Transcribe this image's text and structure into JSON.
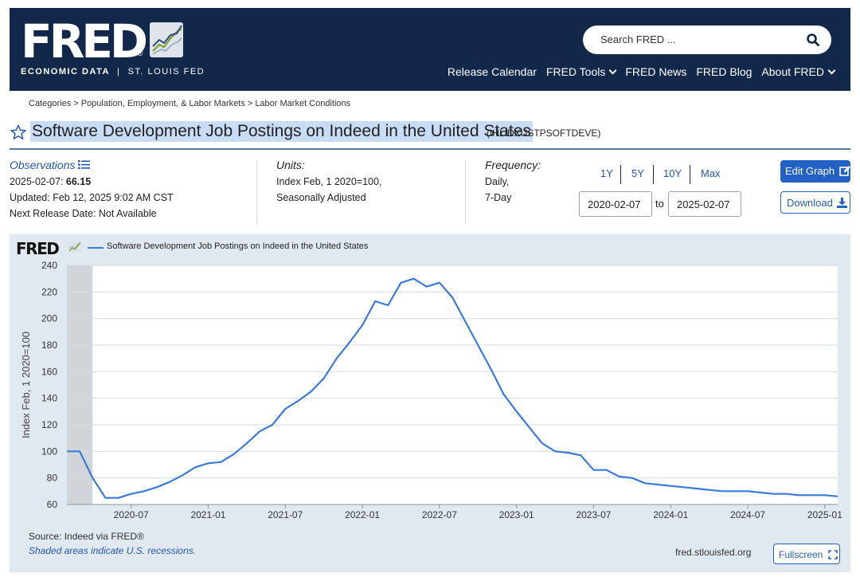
{
  "header": {
    "logo_text": "FRED",
    "logo_reg": "®",
    "logo_sub_bold": "ECONOMIC DATA",
    "logo_sub_sep": "|",
    "logo_sub_rest": "ST. LOUIS FED",
    "search_placeholder": "Search FRED ...",
    "nav": [
      {
        "label": "Release Calendar"
      },
      {
        "label": "FRED Tools"
      },
      {
        "label": "FRED News"
      },
      {
        "label": "FRED Blog"
      },
      {
        "label": "About FRED"
      }
    ]
  },
  "breadcrumb": "Categories > Population, Employment, & Labor Markets > Labor Market Conditions",
  "series": {
    "title": "Software Development Job Postings on Indeed in the United States",
    "id": "(IHLIDXUSTPSOFTDEVE)"
  },
  "observations": {
    "label": "Observations",
    "date": "2025-02-07:",
    "value": "66.15",
    "updated": "Updated: Feb 12, 2025 9:02 AM CST",
    "next_release": "Next Release Date: Not Available"
  },
  "units": {
    "label": "Units:",
    "line1": "Index Feb, 1 2020=100,",
    "line2": "Seasonally Adjusted"
  },
  "frequency": {
    "label": "Frequency:",
    "line1": "Daily,",
    "line2": "7-Day"
  },
  "ranges": [
    "1Y",
    "5Y",
    "10Y",
    "Max"
  ],
  "date_range": {
    "from": "2020-02-07",
    "to_label": "to",
    "to": "2025-02-07"
  },
  "buttons": {
    "edit": "Edit Graph",
    "download": "Download",
    "fullscreen": "Fullscreen"
  },
  "panel": {
    "logo_text": "FRED",
    "source": "Source: Indeed via FRED®",
    "shade_note": "Shaded areas indicate U.S. recessions.",
    "site": "fred.stlouisfed.org"
  },
  "colors": {
    "header_bg": "#12284a",
    "line": "#3a7bd9",
    "panel_bg": "#e1e9f0",
    "accent": "#2461c4"
  },
  "chart_data": {
    "type": "line",
    "legend": "Software Development Job Postings on Indeed in the United States",
    "ylabel": "Index Feb, 1 2020=100",
    "ylim": [
      60,
      240
    ],
    "yticks": [
      60,
      80,
      100,
      120,
      140,
      160,
      180,
      200,
      220,
      240
    ],
    "xticks": [
      "2020-07",
      "2021-01",
      "2021-07",
      "2022-01",
      "2022-07",
      "2023-01",
      "2023-07",
      "2024-01",
      "2024-07",
      "2025-01"
    ],
    "recession": [
      "2020-02",
      "2020-04"
    ],
    "series": [
      {
        "points": [
          [
            "2020-02",
            100
          ],
          [
            "2020-03",
            100
          ],
          [
            "2020-04",
            80
          ],
          [
            "2020-05",
            65
          ],
          [
            "2020-06",
            65
          ],
          [
            "2020-07",
            68
          ],
          [
            "2020-08",
            70
          ],
          [
            "2020-09",
            73
          ],
          [
            "2020-10",
            77
          ],
          [
            "2020-11",
            82
          ],
          [
            "2020-12",
            88
          ],
          [
            "2021-01",
            91
          ],
          [
            "2021-02",
            92
          ],
          [
            "2021-03",
            98
          ],
          [
            "2021-04",
            106
          ],
          [
            "2021-05",
            115
          ],
          [
            "2021-06",
            120
          ],
          [
            "2021-07",
            132
          ],
          [
            "2021-08",
            138
          ],
          [
            "2021-09",
            145
          ],
          [
            "2021-10",
            155
          ],
          [
            "2021-11",
            170
          ],
          [
            "2021-12",
            182
          ],
          [
            "2022-01",
            195
          ],
          [
            "2022-02",
            213
          ],
          [
            "2022-03",
            210
          ],
          [
            "2022-04",
            227
          ],
          [
            "2022-05",
            230
          ],
          [
            "2022-06",
            224
          ],
          [
            "2022-07",
            227
          ],
          [
            "2022-08",
            216
          ],
          [
            "2022-09",
            198
          ],
          [
            "2022-10",
            180
          ],
          [
            "2022-11",
            162
          ],
          [
            "2022-12",
            143
          ],
          [
            "2023-01",
            130
          ],
          [
            "2023-02",
            118
          ],
          [
            "2023-03",
            106
          ],
          [
            "2023-04",
            100
          ],
          [
            "2023-05",
            99
          ],
          [
            "2023-06",
            97
          ],
          [
            "2023-07",
            86
          ],
          [
            "2023-08",
            86
          ],
          [
            "2023-09",
            81
          ],
          [
            "2023-10",
            80
          ],
          [
            "2023-11",
            76
          ],
          [
            "2023-12",
            75
          ],
          [
            "2024-01",
            74
          ],
          [
            "2024-02",
            73
          ],
          [
            "2024-03",
            72
          ],
          [
            "2024-04",
            71
          ],
          [
            "2024-05",
            70
          ],
          [
            "2024-06",
            70
          ],
          [
            "2024-07",
            70
          ],
          [
            "2024-08",
            69
          ],
          [
            "2024-09",
            68
          ],
          [
            "2024-10",
            68
          ],
          [
            "2024-11",
            67
          ],
          [
            "2024-12",
            67
          ],
          [
            "2025-01",
            67
          ],
          [
            "2025-02",
            66.15
          ]
        ]
      }
    ]
  }
}
